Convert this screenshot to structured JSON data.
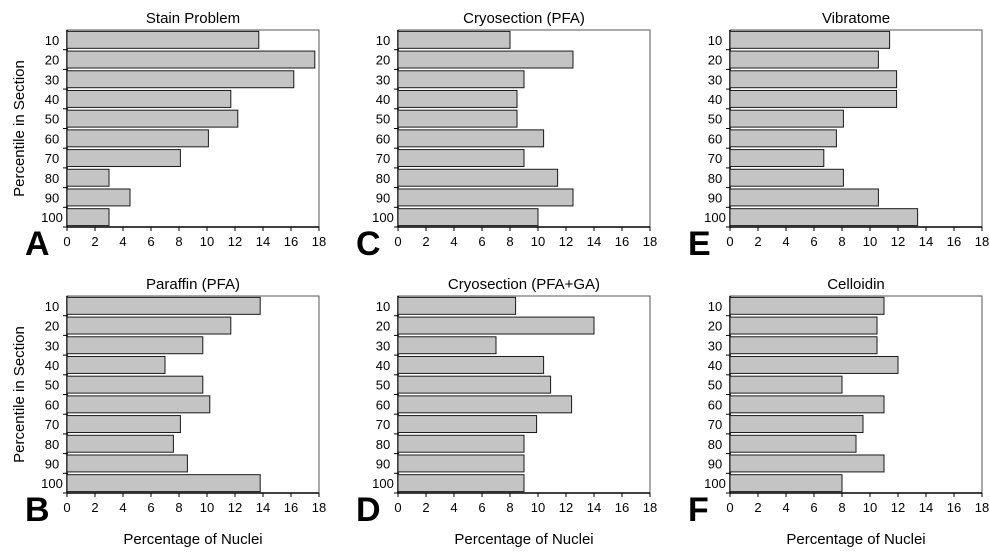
{
  "y_axis_label": "Percentile in Section",
  "x_axis_label": "Percentage of Nuclei",
  "chart_data": [
    {
      "type": "bar",
      "orientation": "horizontal",
      "panel": "A",
      "title": "Stain Problem",
      "categories": [
        "10",
        "20",
        "30",
        "40",
        "50",
        "60",
        "70",
        "80",
        "90",
        "100"
      ],
      "values": [
        13.7,
        17.7,
        16.2,
        11.7,
        12.2,
        10.1,
        8.1,
        3.0,
        4.5,
        3.0
      ],
      "xlim": [
        0,
        18
      ],
      "xticks": [
        "0",
        "2",
        "4",
        "6",
        "8",
        "10",
        "12",
        "14",
        "16",
        "18"
      ],
      "grid": false
    },
    {
      "type": "bar",
      "orientation": "horizontal",
      "panel": "C",
      "title": "Cryosection (PFA)",
      "categories": [
        "10",
        "20",
        "30",
        "40",
        "50",
        "60",
        "70",
        "80",
        "90",
        "100"
      ],
      "values": [
        8.0,
        12.5,
        9.0,
        8.5,
        8.5,
        10.4,
        9.0,
        11.4,
        12.5,
        10.0
      ],
      "xlim": [
        0,
        18
      ],
      "xticks": [
        "0",
        "2",
        "4",
        "6",
        "8",
        "10",
        "12",
        "14",
        "16",
        "18"
      ],
      "grid": false
    },
    {
      "type": "bar",
      "orientation": "horizontal",
      "panel": "E",
      "title": "Vibratome",
      "categories": [
        "10",
        "20",
        "30",
        "40",
        "50",
        "60",
        "70",
        "80",
        "90",
        "100"
      ],
      "values": [
        11.4,
        10.6,
        11.9,
        11.9,
        8.1,
        7.6,
        6.7,
        8.1,
        10.6,
        13.4
      ],
      "xlim": [
        0,
        18
      ],
      "xticks": [
        "0",
        "2",
        "4",
        "6",
        "8",
        "10",
        "12",
        "14",
        "16",
        "18"
      ],
      "grid": false
    },
    {
      "type": "bar",
      "orientation": "horizontal",
      "panel": "B",
      "title": "Paraffin (PFA)",
      "categories": [
        "10",
        "20",
        "30",
        "40",
        "50",
        "60",
        "70",
        "80",
        "90",
        "100"
      ],
      "values": [
        13.8,
        11.7,
        9.7,
        7.0,
        9.7,
        10.2,
        8.1,
        7.6,
        8.6,
        13.8
      ],
      "xlim": [
        0,
        18
      ],
      "xticks": [
        "0",
        "2",
        "4",
        "6",
        "8",
        "10",
        "12",
        "14",
        "16",
        "18"
      ],
      "grid": false
    },
    {
      "type": "bar",
      "orientation": "horizontal",
      "panel": "D",
      "title": "Cryosection (PFA+GA)",
      "categories": [
        "10",
        "20",
        "30",
        "40",
        "50",
        "60",
        "70",
        "80",
        "90",
        "100"
      ],
      "values": [
        8.4,
        14.0,
        7.0,
        10.4,
        10.9,
        12.4,
        9.9,
        9.0,
        9.0,
        9.0
      ],
      "xlim": [
        0,
        18
      ],
      "xticks": [
        "0",
        "2",
        "4",
        "6",
        "8",
        "10",
        "12",
        "14",
        "16",
        "18"
      ],
      "grid": false
    },
    {
      "type": "bar",
      "orientation": "horizontal",
      "panel": "F",
      "title": "Celloidin",
      "categories": [
        "10",
        "20",
        "30",
        "40",
        "50",
        "60",
        "70",
        "80",
        "90",
        "100"
      ],
      "values": [
        11.0,
        10.5,
        10.5,
        12.0,
        8.0,
        11.0,
        9.5,
        9.0,
        11.0,
        8.0
      ],
      "xlim": [
        0,
        18
      ],
      "xticks": [
        "0",
        "2",
        "4",
        "6",
        "8",
        "10",
        "12",
        "14",
        "16",
        "18"
      ],
      "grid": false
    }
  ],
  "colors": {
    "bar_fill": "#c4c4c4",
    "bar_stroke": "#1a1a1a",
    "axis": "#000000",
    "panel_stroke": "#555555"
  }
}
